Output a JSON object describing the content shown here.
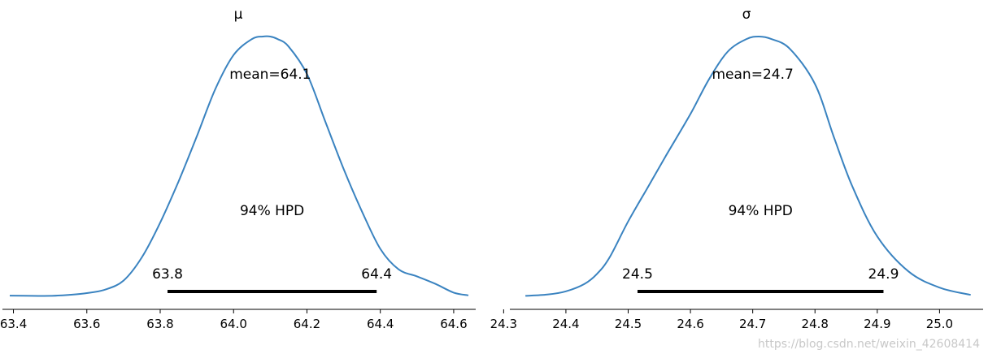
{
  "colors": {
    "kde": "#3a83c0",
    "hpd": "#000000",
    "axis": "#000000"
  },
  "watermark": "https://blog.csdn.net/weixin_42608414",
  "chart_data": [
    {
      "type": "line",
      "title": "μ",
      "xlim": [
        63.37,
        64.66
      ],
      "ylim": [
        0,
        1
      ],
      "xticks": [
        {
          "v": 63.4,
          "label": "63.4"
        },
        {
          "v": 63.6,
          "label": "63.6"
        },
        {
          "v": 63.8,
          "label": "63.8"
        },
        {
          "v": 64.0,
          "label": "64.0"
        },
        {
          "v": 64.2,
          "label": "64.2"
        },
        {
          "v": 64.4,
          "label": "64.4"
        },
        {
          "v": 64.6,
          "label": "64.6"
        }
      ],
      "x": [
        63.39,
        63.45,
        63.5,
        63.55,
        63.6,
        63.65,
        63.7,
        63.75,
        63.8,
        63.85,
        63.9,
        63.95,
        64.0,
        64.05,
        64.08,
        64.1,
        64.12,
        64.15,
        64.2,
        64.25,
        64.3,
        64.35,
        64.4,
        64.45,
        64.5,
        64.55,
        64.6,
        64.64
      ],
      "density": [
        0.003,
        0.002,
        0.002,
        0.006,
        0.013,
        0.027,
        0.063,
        0.156,
        0.295,
        0.46,
        0.641,
        0.829,
        0.966,
        1.03,
        1.04,
        1.04,
        1.03,
        1.0,
        0.89,
        0.7,
        0.51,
        0.34,
        0.19,
        0.108,
        0.08,
        0.05,
        0.015,
        0.004
      ],
      "mean": 64.1,
      "mean_label": "mean=64.1",
      "hpd_label": "94% HPD",
      "hpd": [
        63.82,
        64.39
      ],
      "hpd_low_label": "63.8",
      "hpd_high_label": "64.4"
    },
    {
      "type": "line",
      "title": "σ",
      "xlim": [
        24.31,
        25.07
      ],
      "ylim": [
        0,
        1
      ],
      "xticks": [
        {
          "v": 24.3,
          "label": "24.3"
        },
        {
          "v": 24.4,
          "label": "24.4"
        },
        {
          "v": 24.5,
          "label": "24.5"
        },
        {
          "v": 24.6,
          "label": "24.6"
        },
        {
          "v": 24.7,
          "label": "24.7"
        },
        {
          "v": 24.8,
          "label": "24.8"
        },
        {
          "v": 24.9,
          "label": "24.9"
        },
        {
          "v": 25.0,
          "label": "25.0"
        }
      ],
      "x": [
        24.335,
        24.37,
        24.4,
        24.43,
        24.45,
        24.47,
        24.5,
        24.53,
        24.56,
        24.6,
        24.63,
        24.66,
        24.69,
        24.71,
        24.73,
        24.76,
        24.8,
        24.83,
        24.86,
        24.9,
        24.95,
        25.0,
        25.05
      ],
      "density": [
        0.002,
        0.007,
        0.02,
        0.05,
        0.09,
        0.155,
        0.3,
        0.43,
        0.56,
        0.73,
        0.87,
        0.98,
        1.03,
        1.04,
        1.03,
        0.99,
        0.85,
        0.64,
        0.44,
        0.24,
        0.1,
        0.035,
        0.006
      ],
      "mean": 24.7,
      "mean_label": "mean=24.7",
      "hpd_label": "94% HPD",
      "hpd": [
        24.515,
        24.91
      ],
      "hpd_low_label": "24.5",
      "hpd_high_label": "24.9"
    }
  ]
}
